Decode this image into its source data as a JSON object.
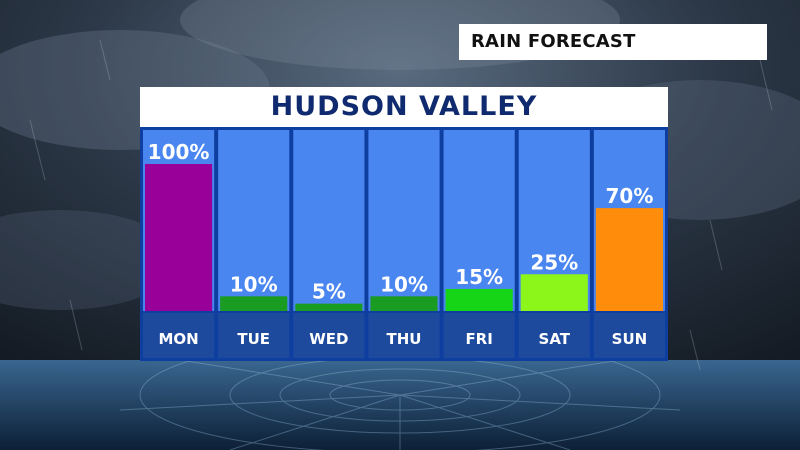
{
  "header_tag": {
    "label": "RAIN FORECAST"
  },
  "panel": {
    "title": "HUDSON VALLEY"
  },
  "colors": {
    "column_bg": "#4a86f0",
    "frame": "#0e3fa0",
    "day_strip": "#1e4a9e",
    "title_text": "#0f2a6e"
  },
  "chart_data": {
    "type": "bar",
    "title": "HUDSON VALLEY",
    "xlabel": "",
    "ylabel": "",
    "ylim": [
      0,
      100
    ],
    "categories": [
      "MON",
      "TUE",
      "WED",
      "THU",
      "FRI",
      "SAT",
      "SUN"
    ],
    "values": [
      100,
      10,
      5,
      10,
      15,
      25,
      70
    ],
    "value_labels": [
      "100%",
      "10%",
      "5%",
      "10%",
      "15%",
      "25%",
      "70%"
    ],
    "bar_colors": [
      "#990099",
      "#1a9c22",
      "#1a9c22",
      "#1a9c22",
      "#16d416",
      "#8cf51a",
      "#ff8c0a"
    ]
  }
}
